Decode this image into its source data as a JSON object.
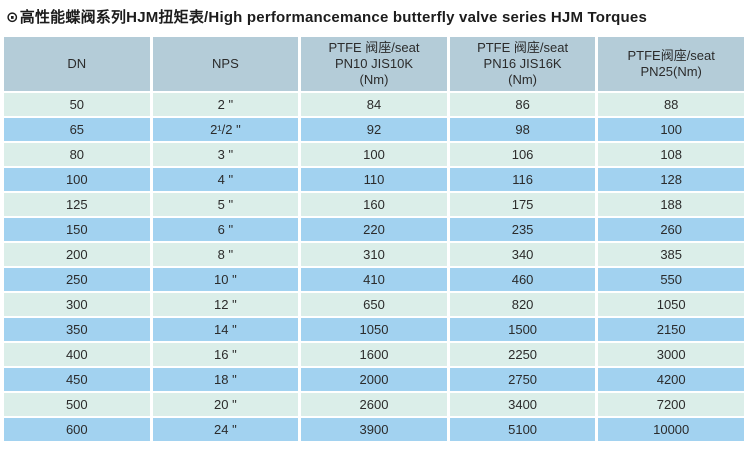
{
  "title": {
    "bullet": "⊙",
    "text": "高性能蝶阀系列HJM扭矩表/High performancemance butterfly valve series HJM Torques"
  },
  "colors": {
    "header_bg": "#b4ccd8",
    "row_light": "#dbeee9",
    "row_blue": "#a2d2f0",
    "text": "#2b2b2b",
    "background": "#ffffff"
  },
  "table": {
    "headers": [
      {
        "lines": [
          "DN"
        ]
      },
      {
        "lines": [
          "NPS"
        ]
      },
      {
        "lines": [
          "PTFE 阀座/seat",
          "PN10 JIS10K",
          "(Nm)"
        ]
      },
      {
        "lines": [
          "PTFE 阀座/seat",
          "PN16 JIS16K",
          "(Nm)"
        ]
      },
      {
        "lines": [
          "PTFE阀座/seat",
          "PN25(Nm)"
        ]
      }
    ],
    "rows": [
      [
        "50",
        "2 \"",
        "84",
        "86",
        "88"
      ],
      [
        "65",
        "2¹/2 \"",
        "92",
        "98",
        "100"
      ],
      [
        "80",
        "3 \"",
        "100",
        "106",
        "108"
      ],
      [
        "100",
        "4 \"",
        "110",
        "116",
        "128"
      ],
      [
        "125",
        "5 \"",
        "160",
        "175",
        "188"
      ],
      [
        "150",
        "6 \"",
        "220",
        "235",
        "260"
      ],
      [
        "200",
        "8 \"",
        "310",
        "340",
        "385"
      ],
      [
        "250",
        "10 \"",
        "410",
        "460",
        "550"
      ],
      [
        "300",
        "12 \"",
        "650",
        "820",
        "1050"
      ],
      [
        "350",
        "14 \"",
        "1050",
        "1500",
        "2150"
      ],
      [
        "400",
        "16 \"",
        "1600",
        "2250",
        "3000"
      ],
      [
        "450",
        "18 \"",
        "2000",
        "2750",
        "4200"
      ],
      [
        "500",
        "20 \"",
        "2600",
        "3400",
        "7200"
      ],
      [
        "600",
        "24 \"",
        "3900",
        "5100",
        "10000"
      ]
    ]
  }
}
